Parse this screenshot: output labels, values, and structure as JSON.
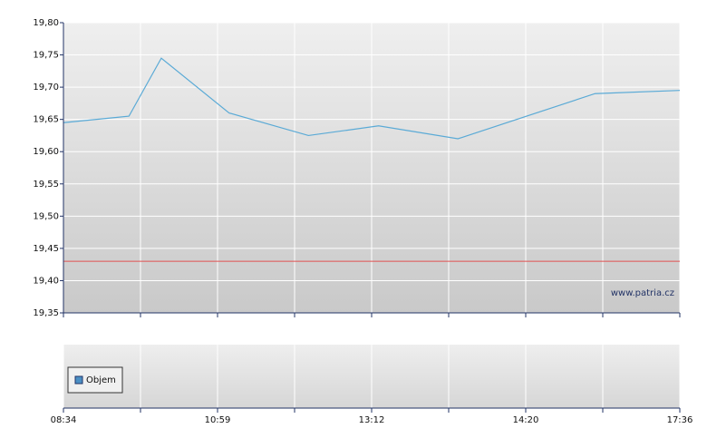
{
  "chart_data": [
    {
      "type": "line",
      "x": [
        0,
        0.85,
        1.27,
        2.15,
        3.18,
        4.09,
        5.12,
        6.9,
        8
      ],
      "series": [
        {
          "color": "#5aaad6",
          "values": [
            19.645,
            19.655,
            19.745,
            19.66,
            19.625,
            19.64,
            19.62,
            19.69,
            19.695
          ]
        }
      ],
      "xlim": [
        0,
        8
      ],
      "xticks": [
        {
          "value": 0,
          "label": "08:34"
        },
        {
          "value": 1,
          "label": null
        },
        {
          "value": 2,
          "label": "10:59"
        },
        {
          "value": 3,
          "label": null
        },
        {
          "value": 4,
          "label": "13:12"
        },
        {
          "value": 5,
          "label": null
        },
        {
          "value": 6,
          "label": "14:20"
        },
        {
          "value": 7,
          "label": null
        },
        {
          "value": 8,
          "label": "17:36"
        }
      ],
      "ylim": [
        19.35,
        19.8
      ],
      "yticks": [
        {
          "value": 19.35,
          "label": "19,35"
        },
        {
          "value": 19.4,
          "label": "19,40"
        },
        {
          "value": 19.45,
          "label": "19,45"
        },
        {
          "value": 19.5,
          "label": "19,50"
        },
        {
          "value": 19.55,
          "label": "19,55"
        },
        {
          "value": 19.6,
          "label": "19,60"
        },
        {
          "value": 19.65,
          "label": "19,65"
        },
        {
          "value": 19.7,
          "label": "19,70"
        },
        {
          "value": 19.75,
          "label": "19,75"
        },
        {
          "value": 19.8,
          "label": "19,80"
        }
      ],
      "reference_line": {
        "value": 19.43,
        "color": "#e05050"
      },
      "annotation": "www.patria.cz",
      "grid": true
    },
    {
      "type": "bar",
      "series": [
        {
          "name": "Objem",
          "color": "#4a8fc4",
          "values": []
        }
      ],
      "legend": "upper left",
      "grid": true
    }
  ]
}
